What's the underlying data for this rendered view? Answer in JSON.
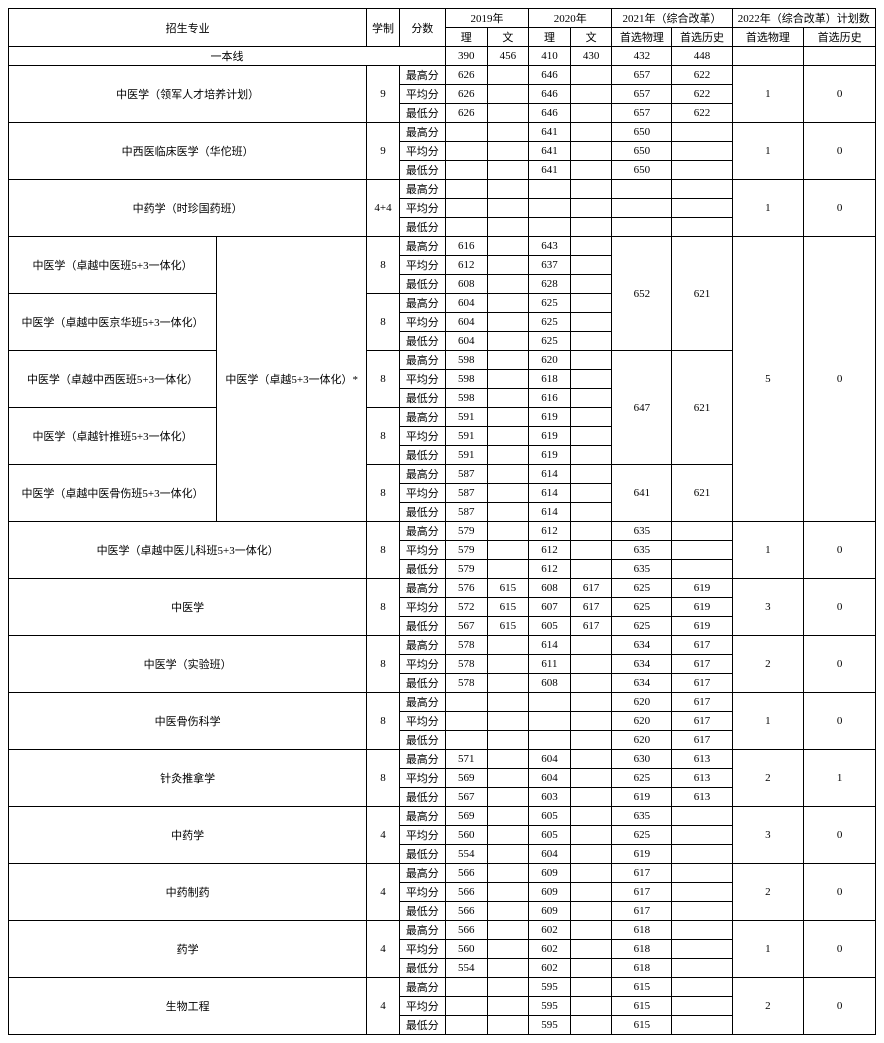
{
  "header": {
    "major": "招生专业",
    "system": "学制",
    "score": "分数",
    "y2019": "2019年",
    "y2020": "2020年",
    "y2021": "2021年（综合改革）",
    "y2022": "2022年（综合改革）计划数",
    "li": "理",
    "wen": "文",
    "phys": "首选物理",
    "hist": "首选历史",
    "tier1": "一本线",
    "tier1_vals": [
      "390",
      "456",
      "410",
      "430",
      "432",
      "448"
    ],
    "max": "最高分",
    "avg": "平均分",
    "min": "最低分"
  },
  "majors": [
    {
      "name": "中医学（领军人才培养计划）",
      "xz": "9",
      "span": 2,
      "rows": [
        [
          "626",
          "",
          "646",
          "",
          "657",
          "622"
        ],
        [
          "626",
          "",
          "646",
          "",
          "657",
          "622"
        ],
        [
          "626",
          "",
          "646",
          "",
          "657",
          "622"
        ]
      ],
      "plan": [
        "1",
        "0"
      ]
    },
    {
      "name": "中西医临床医学（华佗班）",
      "xz": "9",
      "span": 2,
      "rows": [
        [
          "",
          "",
          "641",
          "",
          "650",
          ""
        ],
        [
          "",
          "",
          "641",
          "",
          "650",
          ""
        ],
        [
          "",
          "",
          "641",
          "",
          "650",
          ""
        ]
      ],
      "plan": [
        "1",
        "0"
      ]
    },
    {
      "name": "中药学（时珍国药班）",
      "xz": "4+4",
      "span": 2,
      "rows": [
        [
          "",
          "",
          "",
          "",
          "",
          ""
        ],
        [
          "",
          "",
          "",
          "",
          "",
          ""
        ],
        [
          "",
          "",
          "",
          "",
          "",
          ""
        ]
      ],
      "plan": [
        "1",
        "0"
      ]
    },
    {
      "name": "中医学（卓越中医班5+3一体化）",
      "xz": "8",
      "grouped": true,
      "groupStart": true,
      "rows": [
        [
          "616",
          "",
          "643",
          "",
          "",
          ""
        ],
        [
          "612",
          "",
          "637",
          "",
          "",
          ""
        ],
        [
          "608",
          "",
          "628",
          "",
          "",
          ""
        ]
      ],
      "gphys": "652",
      "ghist": "621",
      "gspan": 6
    },
    {
      "name": "中医学（卓越中医京华班5+3一体化）",
      "xz": "8",
      "grouped": true,
      "rows": [
        [
          "604",
          "",
          "625",
          "",
          "",
          ""
        ],
        [
          "604",
          "",
          "625",
          "",
          "",
          ""
        ],
        [
          "604",
          "",
          "625",
          "",
          "",
          ""
        ]
      ]
    },
    {
      "name": "中医学（卓越中西医班5+3一体化）",
      "xz": "8",
      "grouped": true,
      "g2Start": true,
      "rows": [
        [
          "598",
          "",
          "620",
          "",
          "",
          ""
        ],
        [
          "598",
          "",
          "618",
          "",
          "",
          ""
        ],
        [
          "598",
          "",
          "616",
          "",
          "",
          ""
        ]
      ],
      "gphys": "647",
      "ghist": "621",
      "gspan": 6
    },
    {
      "name": "中医学（卓越针推班5+3一体化）",
      "xz": "8",
      "grouped": true,
      "rows": [
        [
          "591",
          "",
          "619",
          "",
          "",
          ""
        ],
        [
          "591",
          "",
          "619",
          "",
          "",
          ""
        ],
        [
          "591",
          "",
          "619",
          "",
          "",
          ""
        ]
      ]
    },
    {
      "name": "中医学（卓越中医骨伤班5+3一体化）",
      "xz": "8",
      "grouped": true,
      "g3Start": true,
      "rows": [
        [
          "587",
          "",
          "614",
          "",
          "",
          ""
        ],
        [
          "587",
          "",
          "614",
          "",
          "",
          ""
        ],
        [
          "587",
          "",
          "614",
          "",
          "",
          ""
        ]
      ],
      "gphys": "641",
      "ghist": "621",
      "gspan": 3
    },
    {
      "name": "中医学（卓越中医儿科班5+3一体化）",
      "xz": "8",
      "span": 2,
      "rows": [
        [
          "579",
          "",
          "612",
          "",
          "635",
          ""
        ],
        [
          "579",
          "",
          "612",
          "",
          "635",
          ""
        ],
        [
          "579",
          "",
          "612",
          "",
          "635",
          ""
        ]
      ],
      "plan": [
        "1",
        "0"
      ]
    },
    {
      "name": "中医学",
      "xz": "8",
      "span": 2,
      "rows": [
        [
          "576",
          "615",
          "608",
          "617",
          "625",
          "619"
        ],
        [
          "572",
          "615",
          "607",
          "617",
          "625",
          "619"
        ],
        [
          "567",
          "615",
          "605",
          "617",
          "625",
          "619"
        ]
      ],
      "plan": [
        "3",
        "0"
      ]
    },
    {
      "name": "中医学（实验班）",
      "xz": "8",
      "span": 2,
      "rows": [
        [
          "578",
          "",
          "614",
          "",
          "634",
          "617"
        ],
        [
          "578",
          "",
          "611",
          "",
          "634",
          "617"
        ],
        [
          "578",
          "",
          "608",
          "",
          "634",
          "617"
        ]
      ],
      "plan": [
        "2",
        "0"
      ]
    },
    {
      "name": "中医骨伤科学",
      "xz": "8",
      "span": 2,
      "rows": [
        [
          "",
          "",
          "",
          "",
          "620",
          "617"
        ],
        [
          "",
          "",
          "",
          "",
          "620",
          "617"
        ],
        [
          "",
          "",
          "",
          "",
          "620",
          "617"
        ]
      ],
      "plan": [
        "1",
        "0"
      ]
    },
    {
      "name": "针灸推拿学",
      "xz": "8",
      "span": 2,
      "rows": [
        [
          "571",
          "",
          "604",
          "",
          "630",
          "613"
        ],
        [
          "569",
          "",
          "604",
          "",
          "625",
          "613"
        ],
        [
          "567",
          "",
          "603",
          "",
          "619",
          "613"
        ]
      ],
      "plan": [
        "2",
        "1"
      ]
    },
    {
      "name": "中药学",
      "xz": "4",
      "span": 2,
      "rows": [
        [
          "569",
          "",
          "605",
          "",
          "635",
          ""
        ],
        [
          "560",
          "",
          "605",
          "",
          "625",
          ""
        ],
        [
          "554",
          "",
          "604",
          "",
          "619",
          ""
        ]
      ],
      "plan": [
        "3",
        "0"
      ]
    },
    {
      "name": "中药制药",
      "xz": "4",
      "span": 2,
      "rows": [
        [
          "566",
          "",
          "609",
          "",
          "617",
          ""
        ],
        [
          "566",
          "",
          "609",
          "",
          "617",
          ""
        ],
        [
          "566",
          "",
          "609",
          "",
          "617",
          ""
        ]
      ],
      "plan": [
        "2",
        "0"
      ]
    },
    {
      "name": "药学",
      "xz": "4",
      "span": 2,
      "rows": [
        [
          "566",
          "",
          "602",
          "",
          "618",
          ""
        ],
        [
          "560",
          "",
          "602",
          "",
          "618",
          ""
        ],
        [
          "554",
          "",
          "602",
          "",
          "618",
          ""
        ]
      ],
      "plan": [
        "1",
        "0"
      ]
    },
    {
      "name": "生物工程",
      "xz": "4",
      "span": 2,
      "rows": [
        [
          "",
          "",
          "595",
          "",
          "615",
          ""
        ],
        [
          "",
          "",
          "595",
          "",
          "615",
          ""
        ],
        [
          "",
          "",
          "595",
          "",
          "615",
          ""
        ]
      ],
      "plan": [
        "2",
        "0"
      ]
    }
  ],
  "groupLabel": "中医学（卓越5+3一体化）*",
  "groupPlan": [
    "5",
    "0"
  ]
}
